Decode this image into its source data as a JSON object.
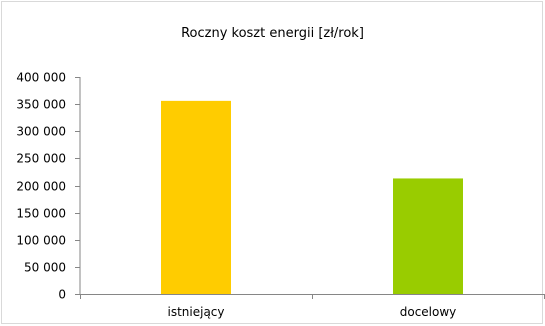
{
  "chart_data": {
    "type": "bar",
    "title": "Roczny koszt energii [zł/rok]",
    "categories": [
      "istniejący",
      "docelowy"
    ],
    "values": [
      356000,
      213000
    ],
    "colors": [
      "#ffcc00",
      "#99cc00"
    ],
    "ylim": [
      0,
      400000
    ],
    "yticks": [
      0,
      50000,
      100000,
      150000,
      200000,
      250000,
      300000,
      350000,
      400000
    ],
    "ytick_labels": [
      "0",
      "50 000",
      "100 000",
      "150 000",
      "200 000",
      "250 000",
      "300 000",
      "350 000",
      "400 000"
    ],
    "grid": false,
    "legend": "none"
  }
}
